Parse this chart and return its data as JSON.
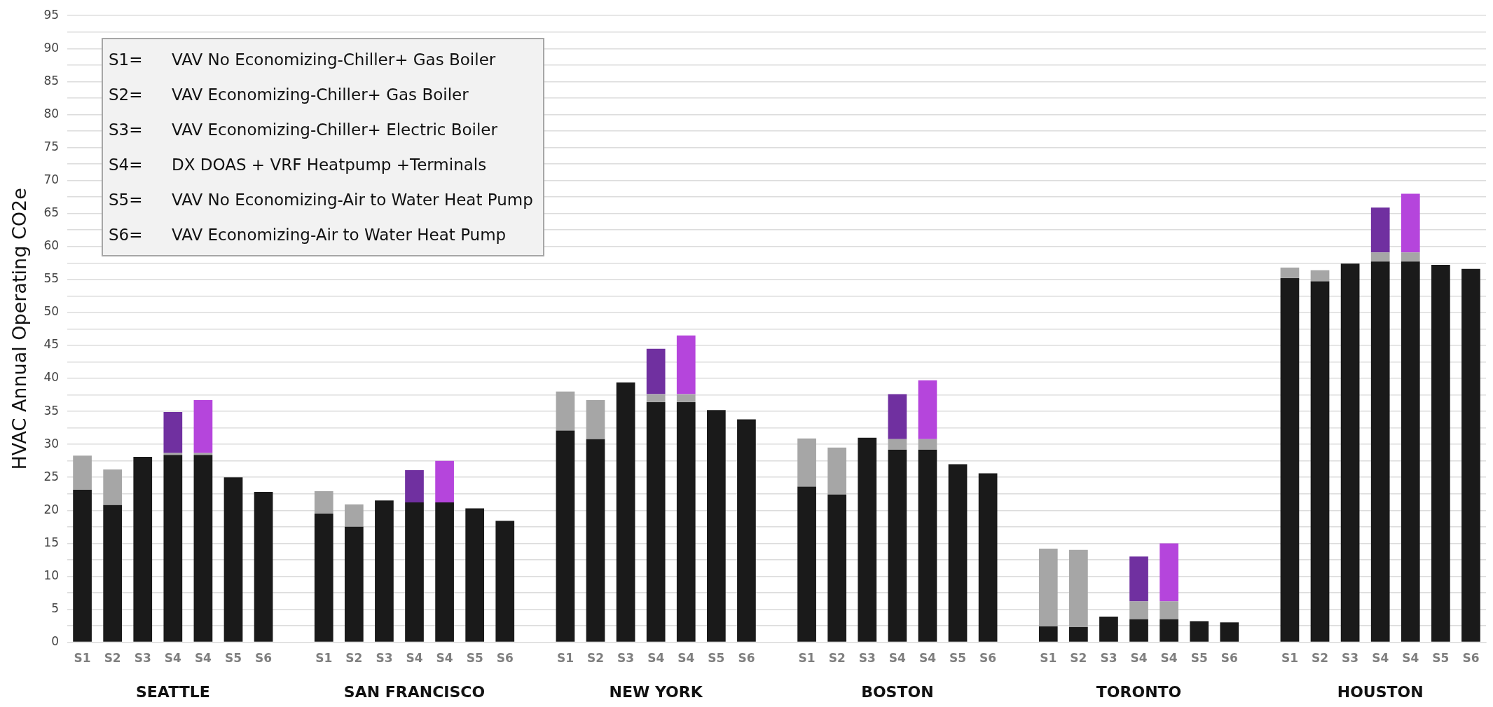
{
  "chart_data": {
    "type": "bar",
    "stacked": true,
    "ylabel": "HVAC Annual Operating CO2e",
    "categories": [
      "S1",
      "S2",
      "S3",
      "S4",
      "S4",
      "S5",
      "S6",
      null,
      "S1",
      "S2",
      "S3",
      "S4",
      "S4",
      "S5",
      "S6",
      null,
      "S1",
      "S2",
      "S3",
      "S4",
      "S4",
      "S5",
      "S6",
      null,
      "S1",
      "S2",
      "S3",
      "S4",
      "S4",
      "S5",
      "S6",
      null,
      "S1",
      "S2",
      "S3",
      "S4",
      "S4",
      "S5",
      "S6",
      null,
      "S1",
      "S2",
      "S3",
      "S4",
      "S4",
      "S5",
      "S6"
    ],
    "series": [
      {
        "color": "#1a1a1a",
        "values": [
          23.1,
          20.8,
          28.1,
          28.4,
          28.4,
          25.0,
          22.8,
          null,
          19.5,
          17.5,
          21.5,
          21.2,
          21.2,
          20.3,
          18.4,
          null,
          32.1,
          30.8,
          39.4,
          36.4,
          36.4,
          35.2,
          33.8,
          null,
          23.6,
          22.4,
          31.0,
          29.2,
          29.2,
          27.0,
          25.6,
          null,
          2.4,
          2.3,
          3.9,
          3.5,
          3.5,
          3.2,
          3.0,
          null,
          55.2,
          54.7,
          57.4,
          57.7,
          57.7,
          57.2,
          56.6
        ]
      },
      {
        "color": "#a6a6a6",
        "values": [
          5.2,
          5.4,
          0,
          0.3,
          0.3,
          0,
          0,
          null,
          3.4,
          3.4,
          0,
          0,
          0,
          0,
          0,
          null,
          5.9,
          5.9,
          0,
          1.2,
          1.2,
          0,
          0,
          null,
          7.3,
          7.1,
          0,
          1.6,
          1.6,
          0,
          0,
          null,
          11.8,
          11.7,
          0,
          2.7,
          2.7,
          0,
          0,
          null,
          1.6,
          1.7,
          0,
          1.4,
          1.4,
          0,
          0
        ]
      },
      {
        "color": "#7030a0",
        "values": [
          0,
          0,
          0,
          6.2,
          0,
          0,
          0,
          null,
          0,
          0,
          0,
          4.9,
          0,
          0,
          0,
          null,
          0,
          0,
          0,
          6.9,
          0,
          0,
          0,
          null,
          0,
          0,
          0,
          6.8,
          0,
          0,
          0,
          null,
          0,
          0,
          0,
          6.8,
          0,
          0,
          0,
          null,
          0,
          0,
          0,
          6.8,
          0,
          0,
          0
        ]
      },
      {
        "color": "#b545dc",
        "values": [
          0,
          0,
          0,
          0,
          8.0,
          0,
          0,
          null,
          0,
          0,
          0,
          0,
          6.3,
          0,
          0,
          null,
          0,
          0,
          0,
          0,
          8.9,
          0,
          0,
          null,
          0,
          0,
          0,
          0,
          8.9,
          0,
          0,
          null,
          0,
          0,
          0,
          0,
          8.8,
          0,
          0,
          null,
          0,
          0,
          0,
          0,
          8.9,
          0,
          0
        ]
      }
    ],
    "ylim": [
      0,
      95
    ],
    "yticks": [
      0,
      {
        "value": 2.5,
        "label": null
      },
      5,
      {
        "value": 7.5,
        "label": null
      },
      10,
      {
        "value": 12.5,
        "label": null
      },
      15,
      {
        "value": 17.5,
        "label": null
      },
      20,
      {
        "value": 22.5,
        "label": null
      },
      25,
      {
        "value": 27.5,
        "label": null
      },
      30,
      {
        "value": 32.5,
        "label": null
      },
      35,
      {
        "value": 37.5,
        "label": null
      },
      40,
      {
        "value": 42.5,
        "label": null
      },
      45,
      {
        "value": 47.5,
        "label": null
      },
      50,
      {
        "value": 52.5,
        "label": null
      },
      55,
      {
        "value": 57.5,
        "label": null
      },
      60,
      {
        "value": 62.5,
        "label": null
      },
      65,
      {
        "value": 67.5,
        "label": null
      },
      70,
      {
        "value": 72.5,
        "label": null
      },
      75,
      {
        "value": 77.5,
        "label": null
      },
      80,
      {
        "value": 82.5,
        "label": null
      },
      85,
      {
        "value": 87.5,
        "label": null
      },
      90,
      {
        "value": 92.5,
        "label": null
      },
      95
    ],
    "grid": "y",
    "legend": false,
    "annotations": [
      "S1= VAV No Economizing-Chiller+ Gas Boiler",
      "S2= VAV Economizing-Chiller+ Gas Boiler",
      "S3= VAV Economizing-Chiller+ Electric Boiler",
      "S4= DX DOAS + VRF Heatpump +Terminals",
      "S5= VAV No Economizing-Air to Water Heat Pump",
      "S6= VAV Economizing-Air to Water Heat Pump",
      "SEATTLE",
      "SAN FRANCISCO",
      "NEW YORK",
      "BOSTON",
      "TORONTO",
      "HOUSTON"
    ]
  }
}
